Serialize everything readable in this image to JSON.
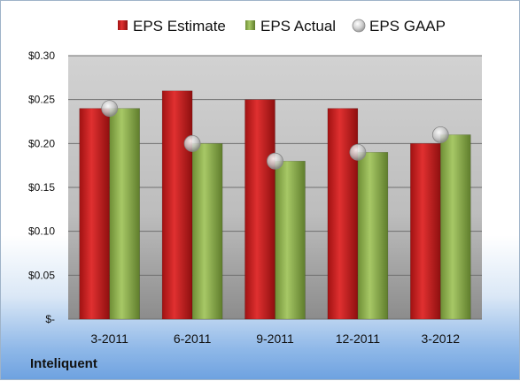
{
  "company": "Inteliquent",
  "chart_data": {
    "type": "bar",
    "categories": [
      "3-2011",
      "6-2011",
      "9-2011",
      "12-2011",
      "3-2012"
    ],
    "series": [
      {
        "name": "EPS Estimate",
        "values": [
          0.24,
          0.26,
          0.25,
          0.24,
          0.2
        ],
        "color": "#cc1f1f",
        "kind": "bar"
      },
      {
        "name": "EPS Actual",
        "values": [
          0.24,
          0.2,
          0.18,
          0.19,
          0.21
        ],
        "color": "#8db04a",
        "kind": "bar"
      },
      {
        "name": "EPS GAAP",
        "values": [
          0.24,
          0.2,
          0.18,
          0.19,
          0.21
        ],
        "color": "#b8b8b8",
        "kind": "marker"
      }
    ],
    "yticks": [
      0,
      0.05,
      0.1,
      0.15,
      0.2,
      0.25,
      0.3
    ],
    "ytick_labels": [
      "$-",
      "$0.05",
      "$0.10",
      "$0.15",
      "$0.20",
      "$0.25",
      "$0.30"
    ],
    "ylim": [
      0,
      0.3
    ],
    "grid": true,
    "legend_position": "top"
  }
}
